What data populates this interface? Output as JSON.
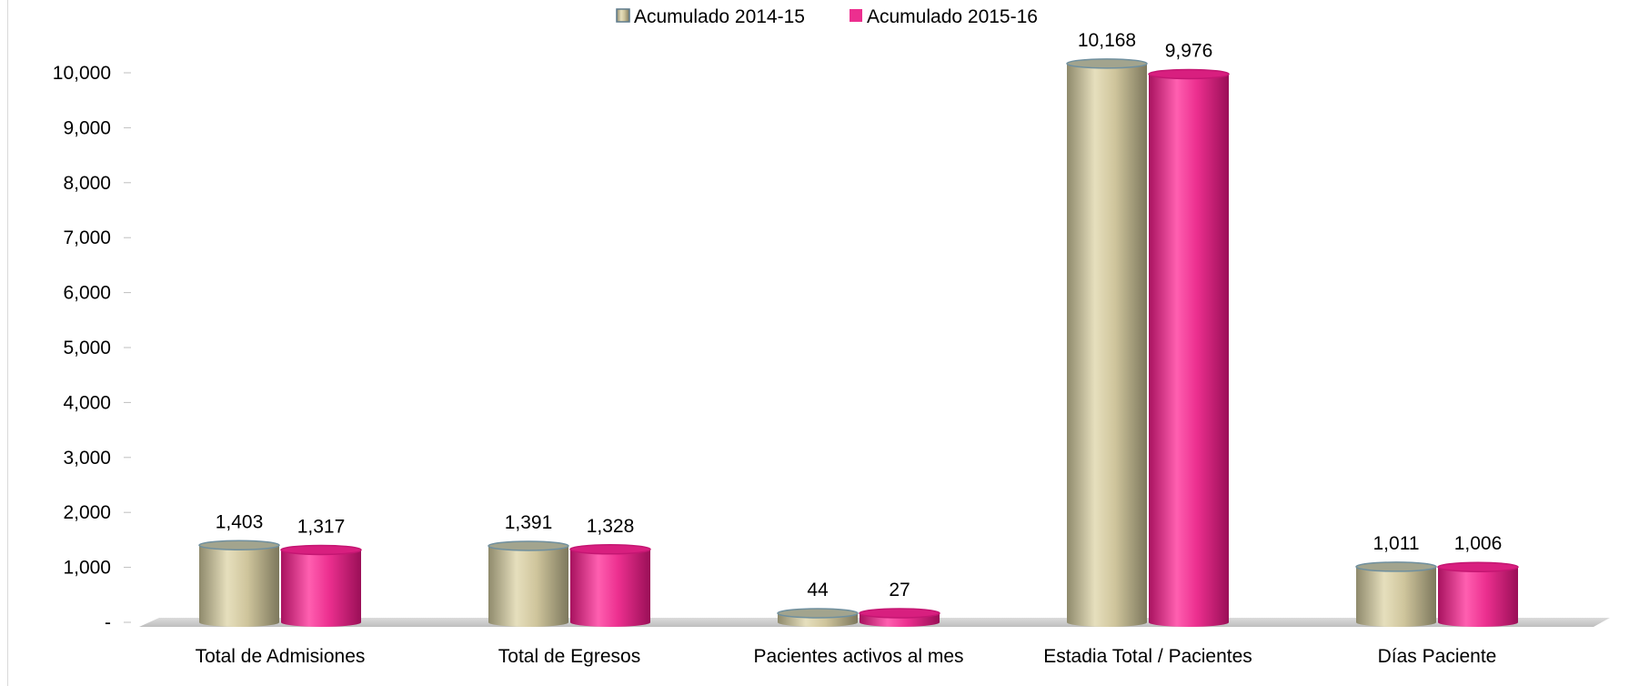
{
  "chart_data": {
    "type": "bar",
    "title": "",
    "xlabel": "",
    "ylabel": "",
    "categories": [
      "Total de Admisiones",
      "Total de Egresos",
      "Pacientes activos al mes",
      "Estadia Total / Pacientes",
      "Días Paciente"
    ],
    "series": [
      {
        "name": "Acumulado 2014-15",
        "values": [
          1403,
          1391,
          44,
          10168,
          1011
        ],
        "labels": [
          "1,403",
          "1,391",
          "44",
          "10,168",
          "1,011"
        ],
        "color": "#cfc59c"
      },
      {
        "name": "Acumulado 2015-16",
        "values": [
          1317,
          1328,
          27,
          9976,
          1006
        ],
        "labels": [
          "1,317",
          "1,328",
          "27",
          "9,976",
          "1,006"
        ],
        "color": "#ec2f8f"
      }
    ],
    "ylim": [
      0,
      10000
    ],
    "yticks": [
      0,
      1000,
      2000,
      3000,
      4000,
      5000,
      6000,
      7000,
      8000,
      9000,
      10000
    ],
    "ytick_labels": [
      "-",
      "1,000",
      "2,000",
      "3,000",
      "4,000",
      "5,000",
      "6,000",
      "7,000",
      "8,000",
      "9,000",
      "10,000"
    ],
    "legend_position": "top",
    "grid": false,
    "style": "3d-cylinder"
  }
}
